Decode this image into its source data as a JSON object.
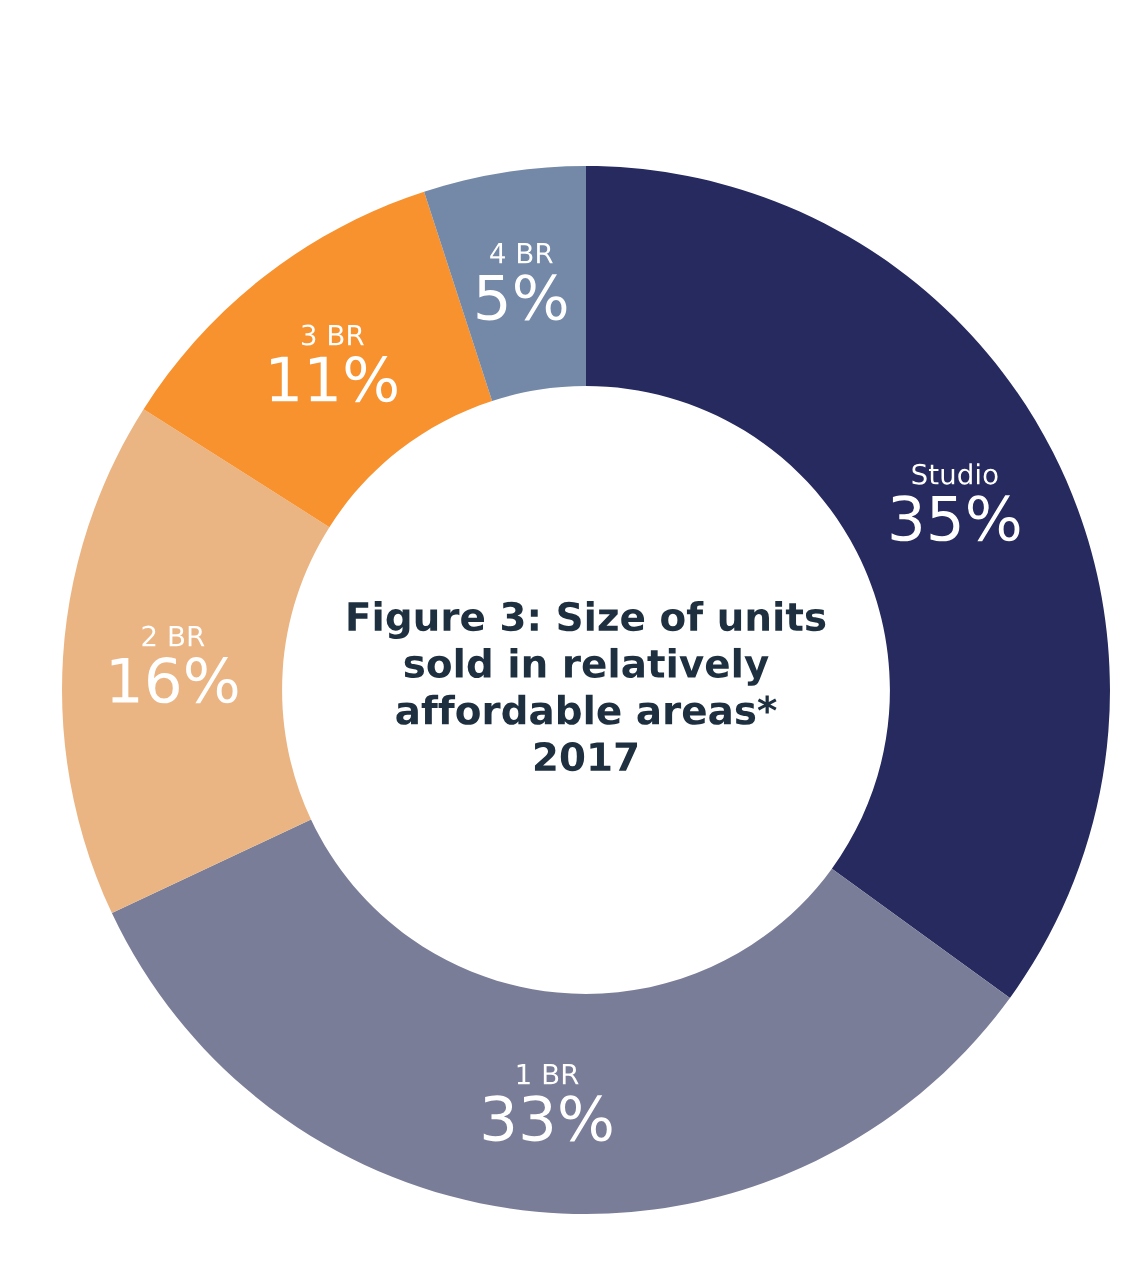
{
  "chart_data": {
    "type": "donut",
    "title": "Figure 3: Size of units\nsold in relatively\naffordable areas*\n2017",
    "categories": [
      "Studio",
      "1 BR",
      "2 BR",
      "3 BR",
      "4 BR"
    ],
    "values": [
      35,
      33,
      16,
      11,
      5
    ],
    "colors": [
      "#262a5e",
      "#7a7d98",
      "#ebb583",
      "#f7922f",
      "#7489a8"
    ],
    "value_labels": [
      "35%",
      "33%",
      "16%",
      "11%",
      "5%"
    ]
  }
}
